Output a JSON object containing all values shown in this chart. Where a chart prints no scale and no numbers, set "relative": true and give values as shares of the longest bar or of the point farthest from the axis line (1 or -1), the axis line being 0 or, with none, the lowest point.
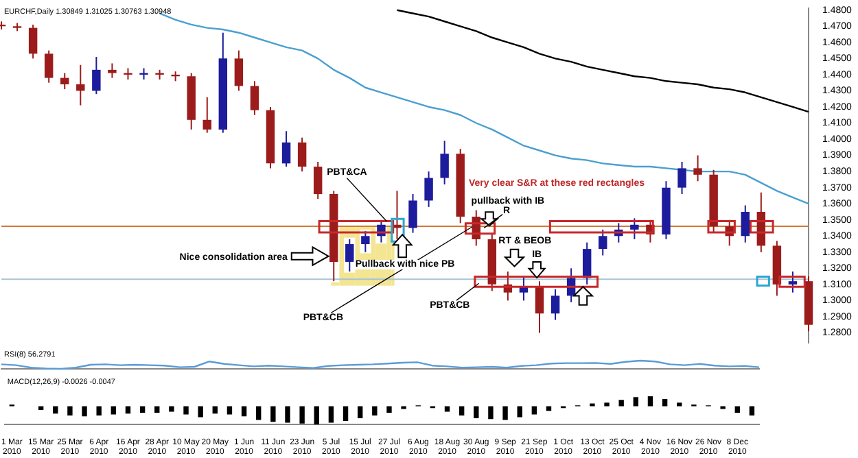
{
  "chart_data": [
    {
      "type": "candlestick",
      "title": "EURCHF,Daily  1.30849 1.31025 1.30763 1.30948",
      "categories": [
        null,
        null,
        null,
        null,
        null,
        null,
        null,
        null,
        null,
        null,
        null,
        null,
        null,
        null,
        null,
        null,
        null,
        null,
        null,
        null,
        null,
        null,
        null,
        null,
        null,
        null,
        null,
        null,
        null,
        null,
        null,
        null,
        null,
        null,
        null,
        null,
        null,
        null,
        null,
        null,
        null,
        null,
        null,
        null,
        null,
        null,
        null,
        null,
        null,
        null,
        null,
        null
      ],
      "ohlc": [
        [
          1.471,
          1.473,
          1.468,
          1.47
        ],
        [
          1.47,
          1.472,
          1.467,
          1.469
        ],
        [
          1.469,
          1.471,
          1.45,
          1.453
        ],
        [
          1.453,
          1.455,
          1.435,
          1.438
        ],
        [
          1.438,
          1.441,
          1.431,
          1.434
        ],
        [
          1.434,
          1.446,
          1.421,
          1.43
        ],
        [
          1.43,
          1.451,
          1.428,
          1.443
        ],
        [
          1.443,
          1.447,
          1.438,
          1.441
        ],
        [
          1.441,
          1.444,
          1.437,
          1.44
        ],
        [
          1.44,
          1.444,
          1.437,
          1.441
        ],
        [
          1.441,
          1.443,
          1.437,
          1.44
        ],
        [
          1.44,
          1.442,
          1.436,
          1.439
        ],
        [
          1.439,
          1.441,
          1.406,
          1.412
        ],
        [
          1.412,
          1.426,
          1.404,
          1.406
        ],
        [
          1.406,
          1.466,
          1.404,
          1.45
        ],
        [
          1.45,
          1.455,
          1.43,
          1.433
        ],
        [
          1.433,
          1.436,
          1.415,
          1.418
        ],
        [
          1.418,
          1.42,
          1.382,
          1.385
        ],
        [
          1.385,
          1.405,
          1.383,
          1.398
        ],
        [
          1.398,
          1.401,
          1.38,
          1.383
        ],
        [
          1.383,
          1.386,
          1.363,
          1.366
        ],
        [
          1.366,
          1.368,
          1.312,
          1.324
        ],
        [
          1.324,
          1.338,
          1.318,
          1.335
        ],
        [
          1.335,
          1.343,
          1.33,
          1.34
        ],
        [
          1.34,
          1.35,
          1.336,
          1.347
        ],
        [
          1.347,
          1.368,
          1.338,
          1.345
        ],
        [
          1.345,
          1.366,
          1.342,
          1.362
        ],
        [
          1.362,
          1.38,
          1.358,
          1.376
        ],
        [
          1.376,
          1.399,
          1.372,
          1.391
        ],
        [
          1.391,
          1.394,
          1.348,
          1.352
        ],
        [
          1.352,
          1.356,
          1.334,
          1.338
        ],
        [
          1.338,
          1.341,
          1.306,
          1.31
        ],
        [
          1.31,
          1.318,
          1.3,
          1.305
        ],
        [
          1.305,
          1.315,
          1.3,
          1.309
        ],
        [
          1.309,
          1.312,
          1.28,
          1.292
        ],
        [
          1.292,
          1.307,
          1.288,
          1.303
        ],
        [
          1.303,
          1.32,
          1.299,
          1.314
        ],
        [
          1.314,
          1.336,
          1.31,
          1.332
        ],
        [
          1.332,
          1.344,
          1.328,
          1.34
        ],
        [
          1.34,
          1.348,
          1.336,
          1.344
        ],
        [
          1.344,
          1.351,
          1.338,
          1.347
        ],
        [
          1.347,
          1.35,
          1.336,
          1.341
        ],
        [
          1.341,
          1.374,
          1.338,
          1.37
        ],
        [
          1.37,
          1.386,
          1.366,
          1.382
        ],
        [
          1.382,
          1.39,
          1.374,
          1.378
        ],
        [
          1.378,
          1.381,
          1.342,
          1.346
        ],
        [
          1.346,
          1.35,
          1.334,
          1.34
        ],
        [
          1.34,
          1.359,
          1.336,
          1.355
        ],
        [
          1.355,
          1.367,
          1.33,
          1.334
        ],
        [
          1.334,
          1.337,
          1.303,
          1.31
        ],
        [
          1.31,
          1.318,
          1.305,
          1.312
        ],
        [
          1.312,
          1.315,
          1.281,
          1.285
        ]
      ],
      "colors": [
        "#9c1c1c",
        "#9c1c1c",
        "#9c1c1c",
        "#9c1c1c",
        "#9c1c1c",
        "#9c1c1c",
        "#1c1c9c",
        "#9c1c1c",
        "#9c1c1c",
        "#1c1c9c",
        "#9c1c1c",
        "#9c1c1c",
        "#9c1c1c",
        "#9c1c1c",
        "#1c1c9c",
        "#9c1c1c",
        "#9c1c1c",
        "#9c1c1c",
        "#1c1c9c",
        "#9c1c1c",
        "#9c1c1c",
        "#9c1c1c",
        "#1c1c9c",
        "#1c1c9c",
        "#1c1c9c",
        "#9c1c1c",
        "#1c1c9c",
        "#1c1c9c",
        "#1c1c9c",
        "#9c1c1c",
        "#9c1c1c",
        "#9c1c1c",
        "#9c1c1c",
        "#1c1c9c",
        "#9c1c1c",
        "#1c1c9c",
        "#1c1c9c",
        "#1c1c9c",
        "#1c1c9c",
        "#1c1c9c",
        "#1c1c9c",
        "#9c1c1c",
        "#1c1c9c",
        "#1c1c9c",
        "#9c1c1c",
        "#9c1c1c",
        "#9c1c1c",
        "#1c1c9c",
        "#9c1c1c",
        "#9c1c1c",
        "#1c1c9c",
        "#9c1c1c"
      ],
      "series": [
        {
          "type": "line",
          "color": "#4a9fd0",
          "values": [
            null,
            null,
            null,
            null,
            null,
            null,
            null,
            null,
            null,
            null,
            1.478,
            1.474,
            1.471,
            1.469,
            1.468,
            1.466,
            1.463,
            1.46,
            1.457,
            1.455,
            1.45,
            1.443,
            1.438,
            1.432,
            1.429,
            1.426,
            1.423,
            1.42,
            1.418,
            1.415,
            1.41,
            1.406,
            1.401,
            1.396,
            1.393,
            1.39,
            1.388,
            1.387,
            1.385,
            1.384,
            1.383,
            1.383,
            1.382,
            1.381,
            1.38,
            1.38,
            1.38,
            1.378,
            1.373,
            1.368,
            1.364,
            1.36
          ]
        },
        {
          "type": "line",
          "color": "#000000",
          "values": [
            null,
            null,
            null,
            null,
            null,
            null,
            null,
            null,
            null,
            null,
            null,
            null,
            null,
            null,
            null,
            null,
            null,
            null,
            null,
            null,
            null,
            null,
            null,
            null,
            null,
            1.48,
            1.478,
            1.476,
            1.473,
            1.47,
            1.467,
            1.463,
            1.46,
            1.457,
            1.453,
            1.45,
            1.448,
            1.445,
            1.443,
            1.441,
            1.439,
            1.438,
            1.436,
            1.435,
            1.434,
            1.432,
            1.431,
            1.429,
            1.426,
            1.423,
            1.42,
            1.417
          ]
        }
      ],
      "ylim": [
        1.274,
        1.481
      ],
      "yticks": [
        {
          "value": 1.28,
          "label": "1.2800"
        },
        {
          "value": 1.29,
          "label": "1.2900"
        },
        {
          "value": 1.3,
          "label": "1.3000"
        },
        {
          "value": 1.31,
          "label": "1.3100"
        },
        {
          "value": 1.32,
          "label": "1.3200"
        },
        {
          "value": 1.33,
          "label": "1.3300"
        },
        {
          "value": 1.34,
          "label": "1.3400"
        },
        {
          "value": 1.35,
          "label": "1.3500"
        },
        {
          "value": 1.36,
          "label": "1.3600"
        },
        {
          "value": 1.37,
          "label": "1.3700"
        },
        {
          "value": 1.38,
          "label": "1.3800"
        },
        {
          "value": 1.39,
          "label": "1.3900"
        },
        {
          "value": 1.4,
          "label": "1.4000"
        },
        {
          "value": 1.41,
          "label": "1.4100"
        },
        {
          "value": 1.42,
          "label": "1.4200"
        },
        {
          "value": 1.43,
          "label": "1.4300"
        },
        {
          "value": 1.44,
          "label": "1.4400"
        },
        {
          "value": 1.45,
          "label": "1.4500"
        },
        {
          "value": 1.46,
          "label": "1.4600"
        },
        {
          "value": 1.47,
          "label": "1.4700"
        },
        {
          "value": 1.48,
          "label": "1.4800"
        }
      ],
      "ref_lines": [
        {
          "axis": "y",
          "value": 1.3461,
          "color": "#d07a3a"
        },
        {
          "axis": "y",
          "value": 1.3132,
          "color": "#a9c3d3"
        }
      ],
      "tick_labels": "y",
      "annotations": [
        "PBT&CA",
        "Nice consolidation area",
        "Pullback with nice PB",
        "PBT&CB",
        "Very clear S&R at these red rectangles",
        "pullback with IB",
        "R",
        "RT & BEOB",
        "IB",
        "PBT&CB"
      ]
    },
    {
      "type": "line",
      "title": "RSI(8) 56.2791",
      "relative": true,
      "categories": [
        null,
        null,
        null,
        null,
        null,
        null,
        null,
        null,
        null,
        null,
        null,
        null,
        null,
        null,
        null,
        null,
        null,
        null,
        null,
        null,
        null,
        null,
        null,
        null,
        null,
        null,
        null,
        null,
        null,
        null,
        null,
        null,
        null,
        null,
        null,
        null,
        null,
        null,
        null,
        null,
        null,
        null,
        null,
        null,
        null,
        null,
        null,
        null,
        null,
        null,
        null,
        null
      ],
      "series": [
        {
          "color": "#5b9bd5",
          "values": [
            0.55,
            0.45,
            0.15,
            0.05,
            0,
            0.15,
            0.5,
            0.55,
            0.45,
            0.5,
            0.45,
            0.4,
            0.2,
            0.25,
            0.9,
            0.6,
            0.45,
            0.3,
            0.4,
            0.3,
            0.2,
            0.1,
            0.35,
            0.45,
            0.5,
            0.55,
            0.65,
            0.75,
            0.8,
            0.4,
            0.3,
            0.15,
            0.2,
            0.25,
            0.15,
            0.35,
            0.45,
            0.65,
            0.7,
            0.7,
            0.72,
            0.6,
            0.85,
            1,
            0.9,
            0.55,
            0.45,
            0.6,
            0.4,
            0.3,
            0.35,
            0.2
          ]
        }
      ]
    },
    {
      "type": "bar",
      "title": "MACD(12,26,9) -0.0026 -0.0047",
      "relative": true,
      "tick_labels": "x",
      "categories": [
        "1 Mar 2010",
        null,
        "15 Mar 2010",
        null,
        "25 Mar 2010",
        null,
        "6 Apr 2010",
        null,
        "16 Apr 2010",
        null,
        "28 Apr 2010",
        null,
        "10 May 2010",
        null,
        "20 May 2010",
        null,
        "1 Jun 2010",
        null,
        "11 Jun 2010",
        null,
        "23 Jun 2010",
        null,
        "5 Jul 2010",
        null,
        "15 Jul 2010",
        null,
        "27 Jul 2010",
        null,
        "6 Aug 2010",
        null,
        "18 Aug 2010",
        null,
        "30 Aug 2010",
        null,
        "9 Sep 2010",
        null,
        "21 Sep 2010",
        null,
        "1 Oct 2010",
        null,
        "13 Oct 2010",
        null,
        "25 Oct 2010",
        null,
        "4 Nov 2010",
        null,
        "16 Nov 2010",
        null,
        "26 Nov 2010",
        null,
        "8 Dec 2010",
        null
      ],
      "series": [
        {
          "color": "#000000",
          "values": [
            0.1,
            0,
            -0.2,
            -0.4,
            -0.5,
            -0.55,
            -0.5,
            -0.45,
            -0.4,
            -0.35,
            -0.35,
            -0.3,
            -0.45,
            -0.6,
            -0.4,
            -0.45,
            -0.55,
            -0.75,
            -0.85,
            -0.9,
            -0.95,
            -1,
            -0.9,
            -0.8,
            -0.65,
            -0.5,
            -0.35,
            -0.15,
            0.05,
            -0.1,
            -0.3,
            -0.5,
            -0.65,
            -0.7,
            -0.75,
            -0.6,
            -0.45,
            -0.25,
            -0.1,
            0.05,
            0.15,
            0.2,
            0.35,
            0.5,
            0.55,
            0.4,
            0.2,
            0.1,
            0.05,
            -0.15,
            -0.35,
            -0.5
          ]
        }
      ]
    }
  ]
}
